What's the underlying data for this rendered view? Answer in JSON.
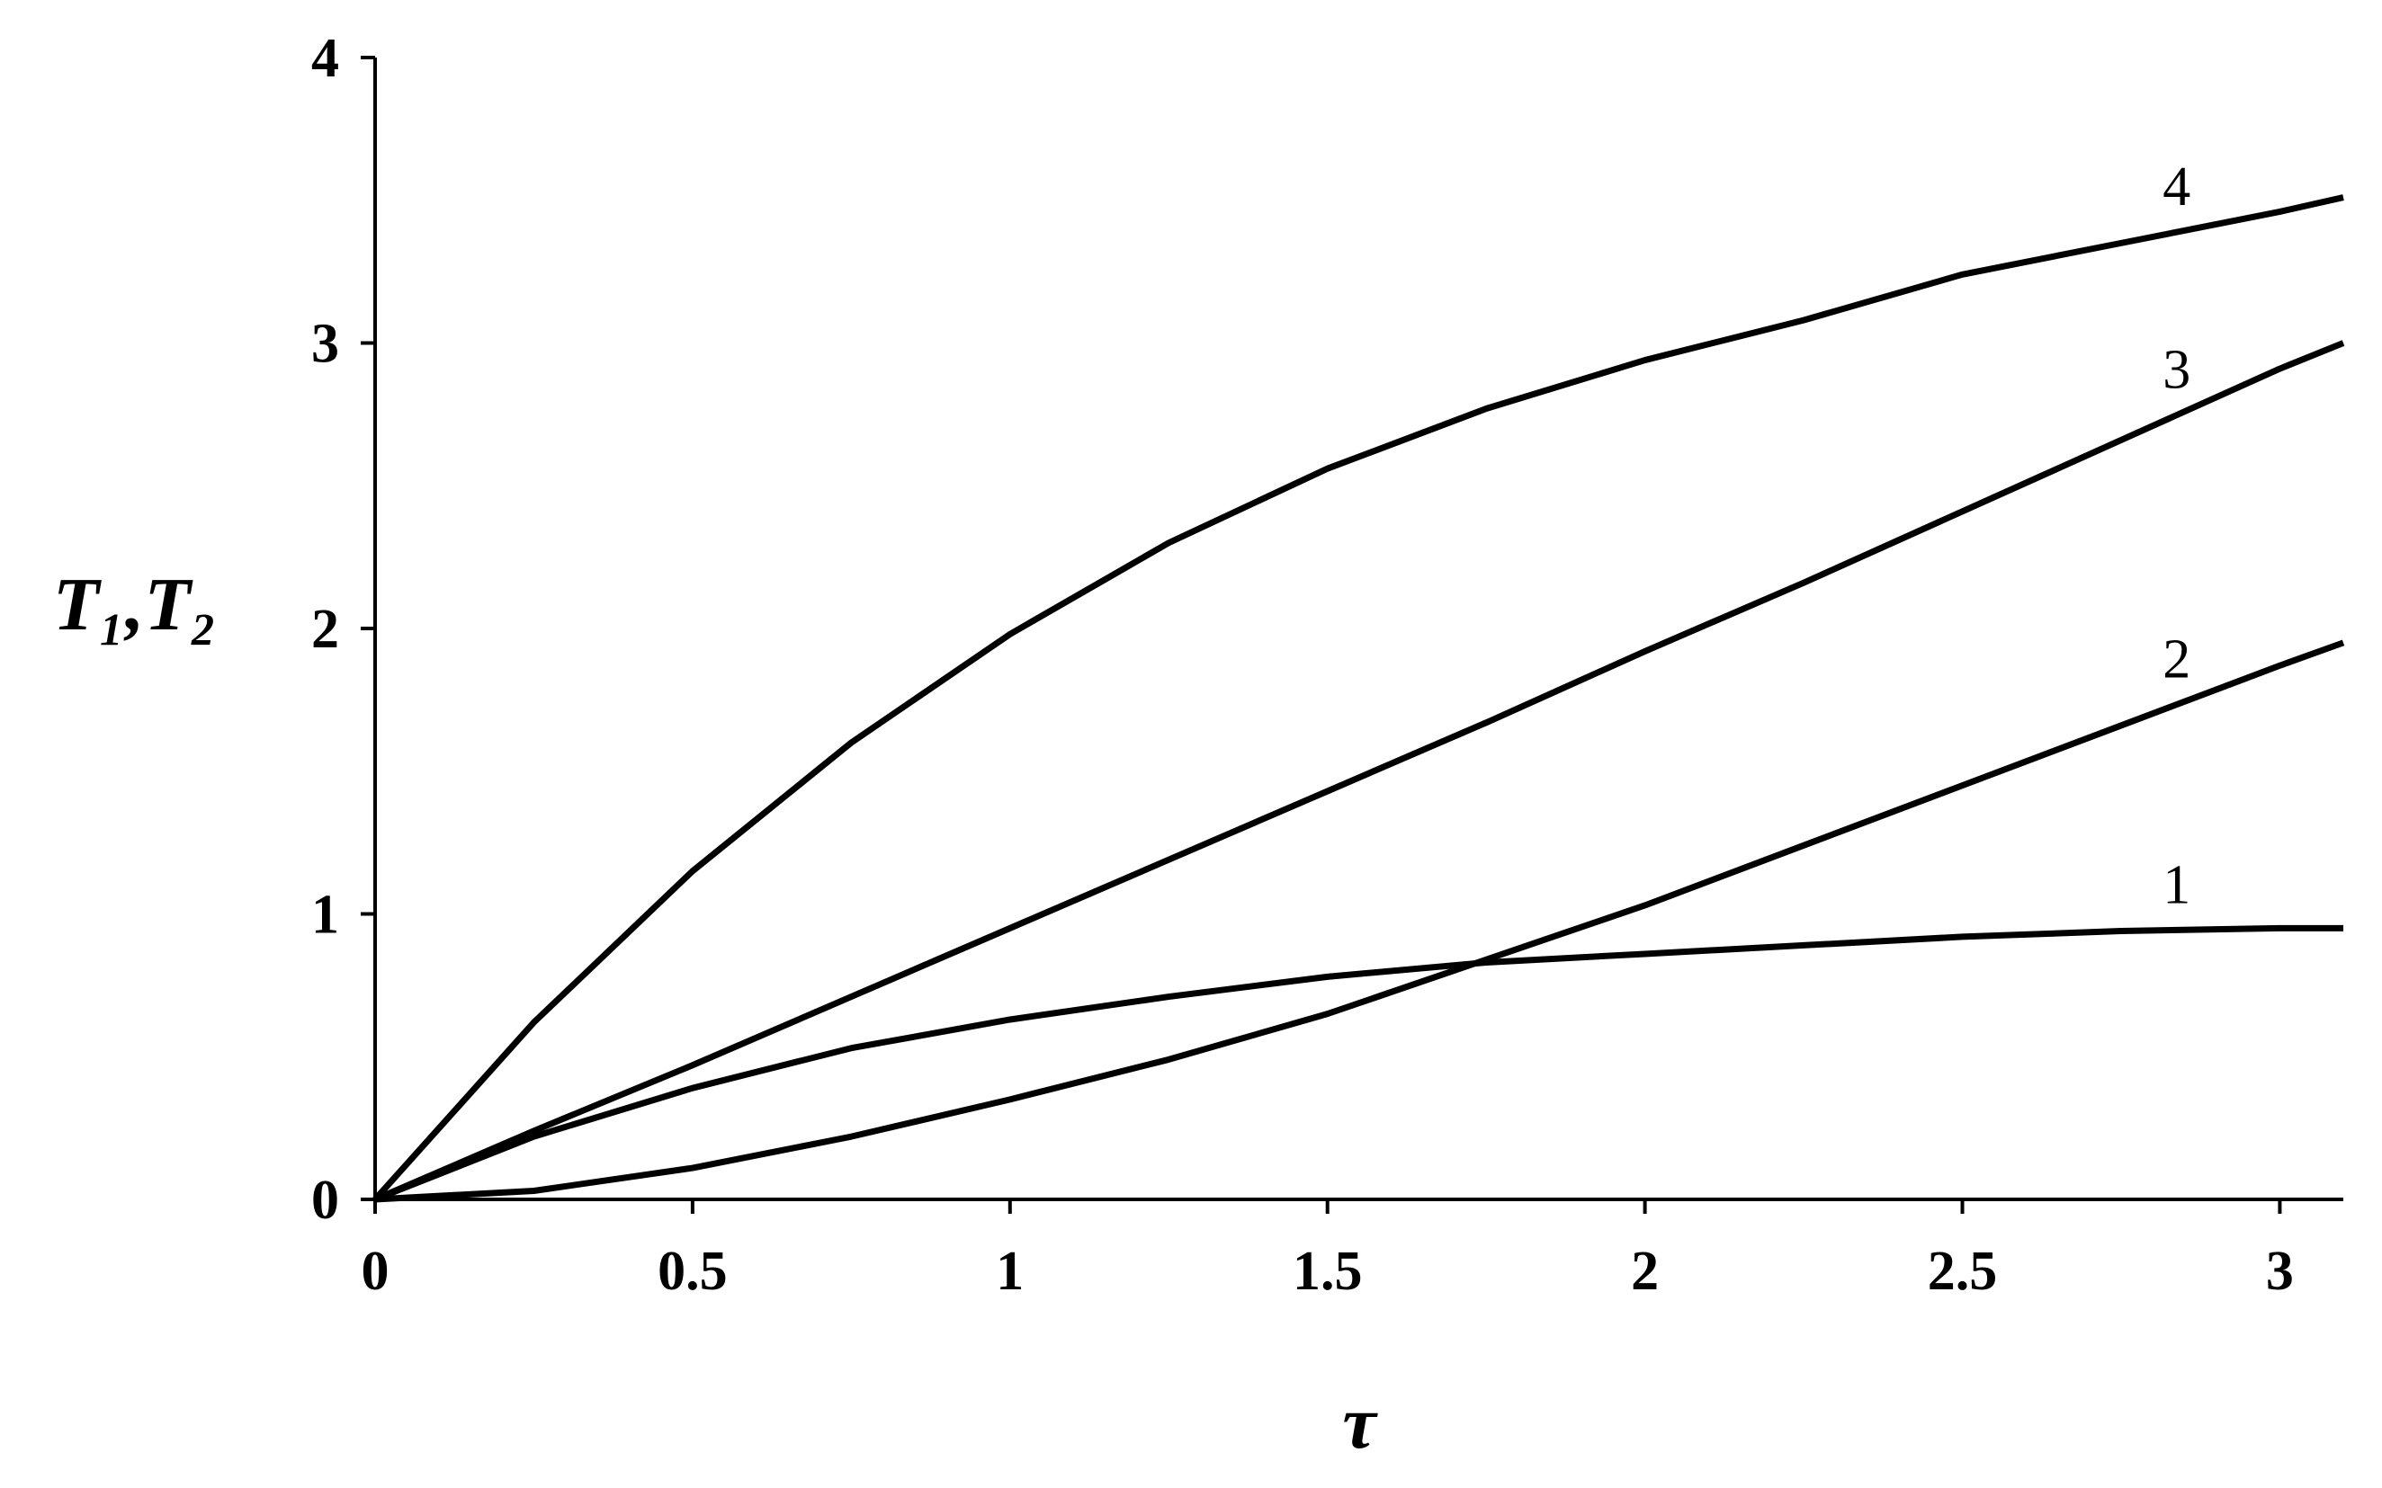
{
  "chart_data": {
    "type": "line",
    "x_label": "τ",
    "y_label": "T₁,T₂",
    "x": [
      0,
      0.25,
      0.5,
      0.75,
      1,
      1.25,
      1.5,
      1.75,
      2,
      2.25,
      2.5,
      2.75,
      3,
      3.1
    ],
    "series": [
      {
        "name": "1",
        "color": "#000000",
        "values": [
          0,
          0.22,
          0.39,
          0.53,
          0.63,
          0.71,
          0.78,
          0.83,
          0.86,
          0.89,
          0.92,
          0.94,
          0.95,
          0.95
        ]
      },
      {
        "name": "2",
        "color": "#000000",
        "values": [
          0,
          0.03,
          0.11,
          0.22,
          0.35,
          0.49,
          0.65,
          0.84,
          1.03,
          1.24,
          1.45,
          1.66,
          1.87,
          1.95
        ]
      },
      {
        "name": "3",
        "color": "#000000",
        "values": [
          0,
          0.24,
          0.47,
          0.71,
          0.95,
          1.19,
          1.43,
          1.67,
          1.92,
          2.16,
          2.41,
          2.66,
          2.91,
          3.0
        ]
      },
      {
        "name": "4",
        "color": "#000000",
        "values": [
          0,
          0.62,
          1.15,
          1.6,
          1.98,
          2.3,
          2.56,
          2.77,
          2.94,
          3.08,
          3.24,
          3.35,
          3.46,
          3.51
        ]
      }
    ],
    "xlim": [
      0,
      3.1
    ],
    "xticks": [
      0,
      0.5,
      1,
      1.5,
      2,
      2.5,
      3
    ],
    "ylim": [
      0,
      4
    ],
    "yticks": [
      0,
      1,
      2,
      3,
      4
    ],
    "grid": false
  }
}
